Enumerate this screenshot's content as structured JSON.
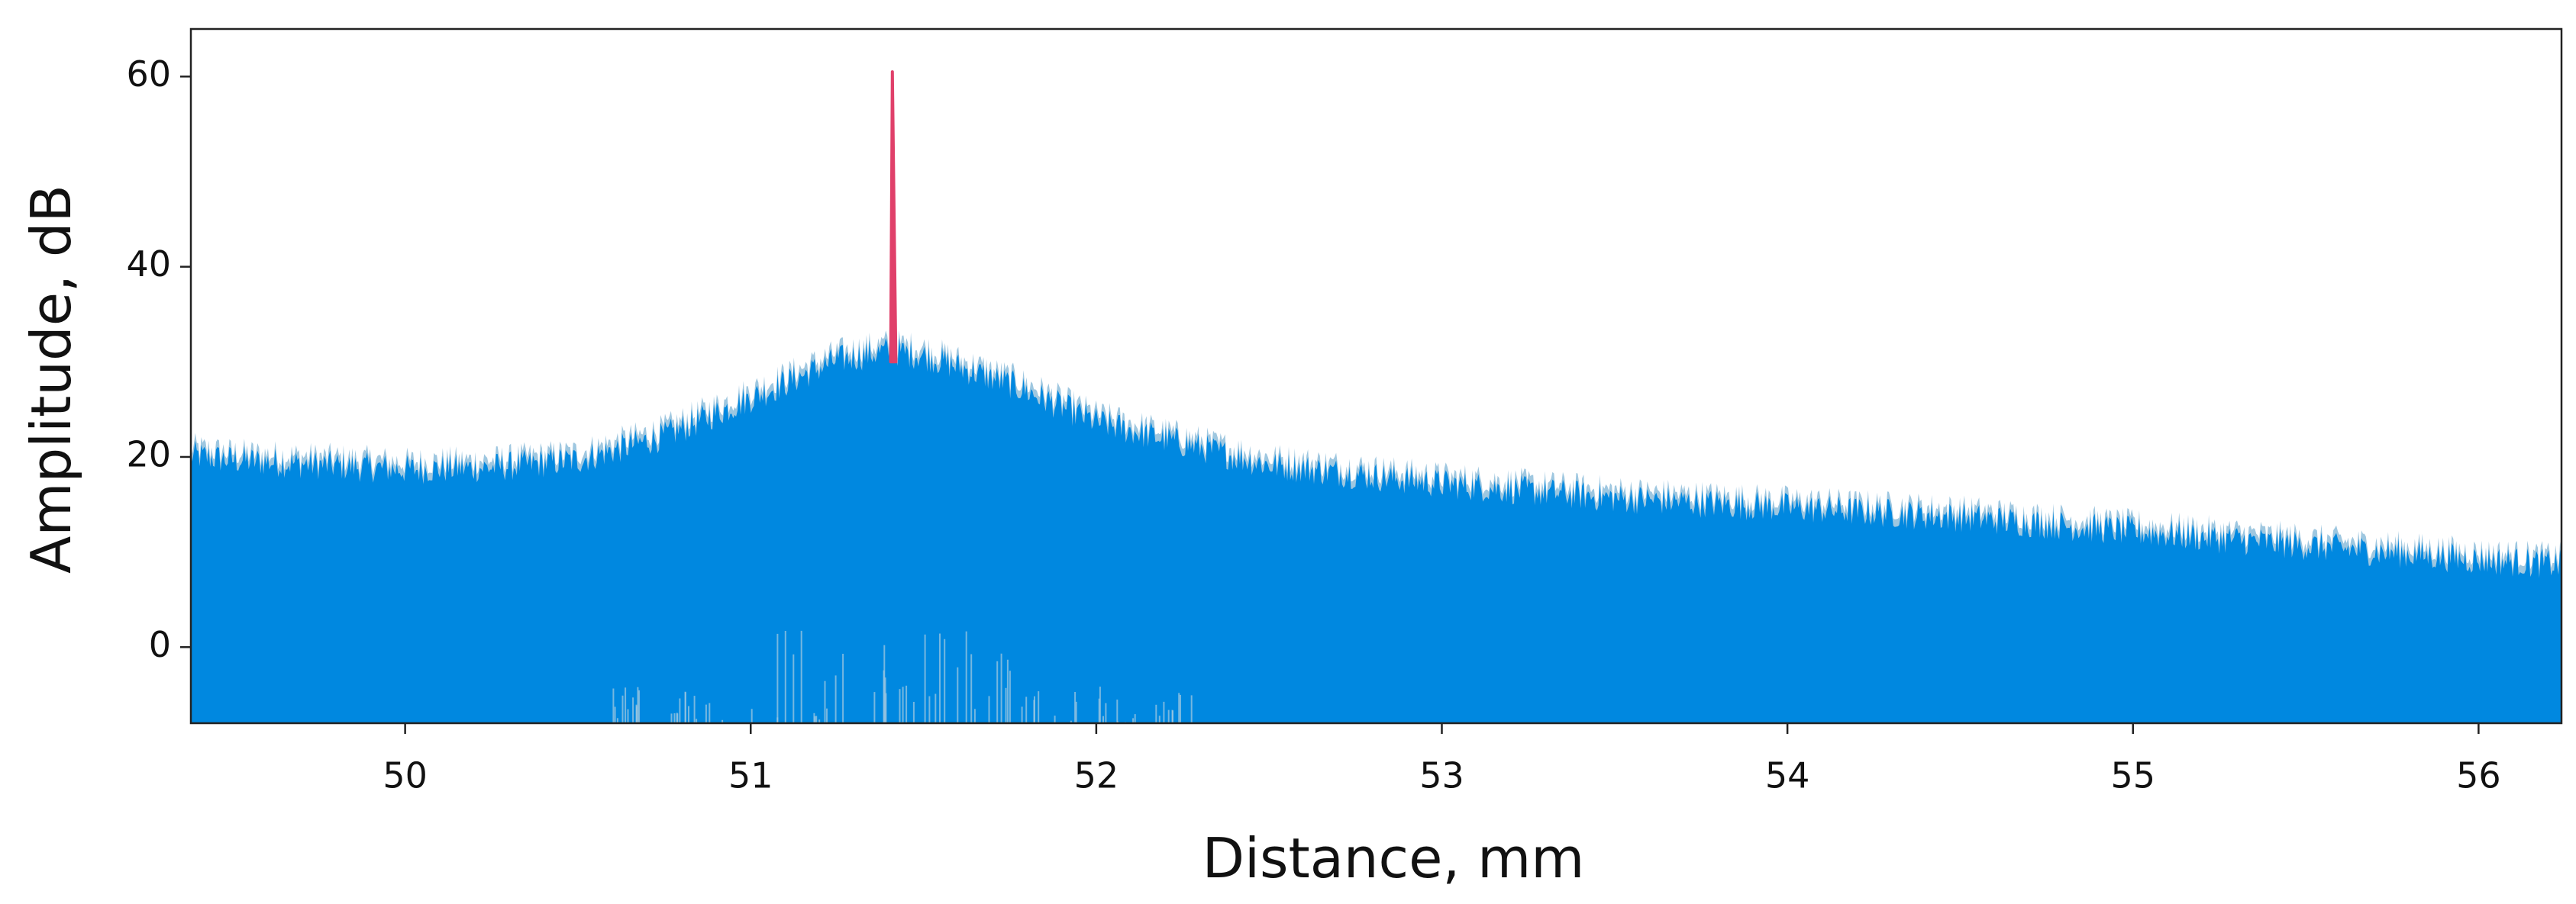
{
  "chart_data": {
    "type": "area",
    "title": "",
    "xlabel": "Distance, mm",
    "ylabel": "Amplitude, dB",
    "xlim": [
      49.38,
      56.24
    ],
    "ylim": [
      -8,
      65
    ],
    "x_ticks": [
      50,
      51,
      52,
      53,
      54,
      55,
      56
    ],
    "y_ticks": [
      0,
      20,
      40,
      60
    ],
    "grid": false,
    "legend": "none",
    "colors": {
      "noise_fill": "#0088e0",
      "noise_edge": "#9ec7e0",
      "peak": "#e0406a",
      "axis": "#222222",
      "background": "#ffffff"
    },
    "series": [
      {
        "type": "area",
        "baseline": -8,
        "x": [
          49.38,
          49.5,
          49.75,
          50.0,
          50.25,
          50.5,
          50.75,
          51.0,
          51.25,
          51.4,
          51.5,
          51.75,
          52.0,
          52.5,
          53.0,
          53.5,
          54.0,
          54.5,
          55.0,
          55.5,
          56.0,
          56.24
        ],
        "y": [
          20.5,
          20.0,
          19.5,
          19.0,
          19.2,
          20.0,
          22.5,
          26.5,
          30.5,
          31.5,
          31.0,
          28.0,
          24.0,
          19.5,
          17.5,
          16.0,
          15.0,
          14.0,
          12.5,
          11.0,
          9.5,
          9.0
        ]
      },
      {
        "type": "line",
        "x": [
          51.405,
          51.41,
          51.415,
          51.42
        ],
        "y": [
          30.0,
          60.5,
          45.0,
          30.0
        ]
      }
    ]
  }
}
